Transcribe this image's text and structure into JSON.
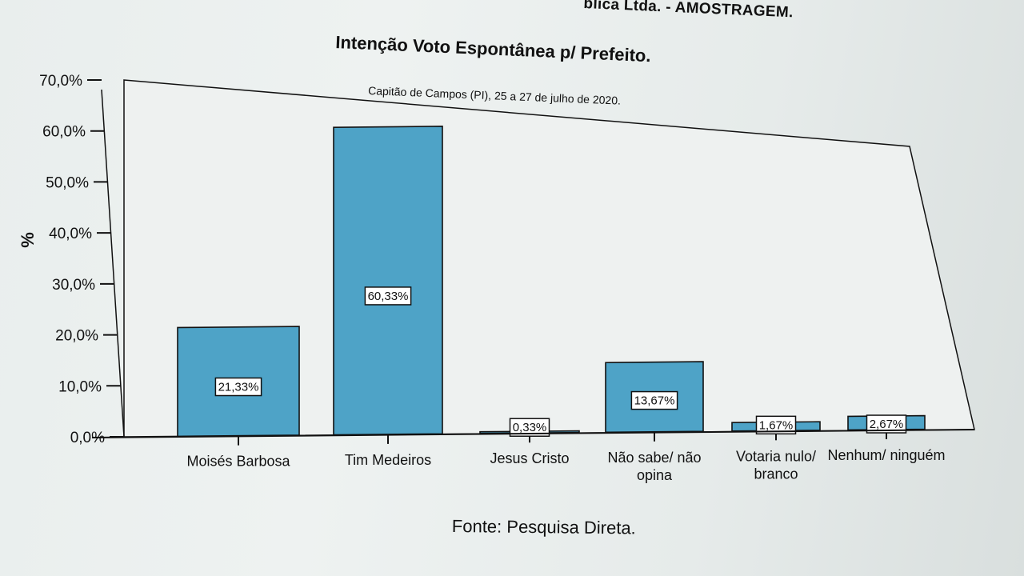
{
  "header_fragment": "blica Ltda. - AMOSTRAGEM.",
  "source_note": "Fonte: Pesquisa Direta.",
  "chart_data": {
    "type": "bar",
    "title": "Intenção Voto Espontânea p/ Prefeito.",
    "subtitle": "Capitão de Campos (PI), 25 a 27 de julho de 2020.",
    "xlabel": "",
    "ylabel": "%",
    "ylim": [
      0,
      70
    ],
    "yticks": [
      "0,0%",
      "10,0%",
      "20,0%",
      "30,0%",
      "40,0%",
      "50,0%",
      "60,0%",
      "70,0%"
    ],
    "categories": [
      [
        "Moisés Barbosa"
      ],
      [
        "Tim Medeiros"
      ],
      [
        "Jesus Cristo"
      ],
      [
        "Não sabe/ não",
        "opina"
      ],
      [
        "Votaria nulo/",
        "branco"
      ],
      [
        "Nenhum/ ninguém"
      ]
    ],
    "values": [
      21.33,
      60.33,
      0.33,
      13.67,
      1.67,
      2.67
    ],
    "data_labels": [
      "21,33%",
      "60,33%",
      "0,33%",
      "13,67%",
      "1,67%",
      "2,67%"
    ],
    "bar_color": "#4ea3c7",
    "grid": false,
    "legend": "none"
  }
}
